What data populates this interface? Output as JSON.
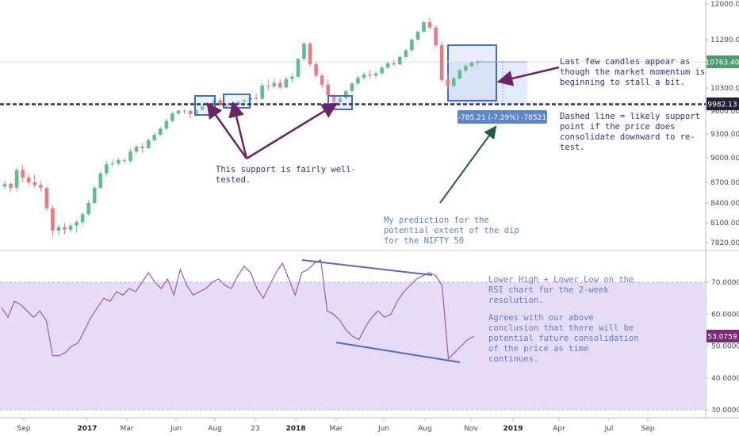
{
  "colors": {
    "up": "#5fbf8a",
    "down": "#ee7a80",
    "support_line": "#2e2a7e",
    "rsi_line": "#9b59b6",
    "rsi_band": "#e6dcf5",
    "box_stroke": "#3d6ec7",
    "box_fill": "#dde7f7",
    "arrow_purple": "#6b2466",
    "arrow_green": "#1f5e3f",
    "note_dark": "#3c2a8a",
    "note_blue": "#5b7fd6",
    "price_badge": "#222233",
    "rsi_badge": "#7b2a73",
    "measure_badge": "#5b86c9"
  },
  "chart_data": [
    {
      "type": "candlestick",
      "title": "",
      "price_axis": {
        "min": 7700,
        "max": 12000,
        "ticks": [
          7820,
          8100,
          8400,
          8700,
          9000,
          9300,
          9600,
          9900,
          10300,
          10700,
          11200,
          12000
        ],
        "tick_labels": [
          "7820.00",
          "8100.00",
          "8400.00",
          "8700.00",
          "9000.00",
          "9300.00",
          "9600.00",
          "9900.00",
          "10300.00",
          "10700.00",
          "11200.00",
          "12000.00"
        ]
      },
      "time_axis": [
        "Sep",
        "2017",
        "Mar",
        "Jun",
        "Aug",
        "23",
        "2018",
        "Mar",
        "Jun",
        "Aug",
        "Nov",
        "2019",
        "Apr",
        "Jul",
        "Sep"
      ],
      "time_axis_bold": [
        "2017",
        "2018",
        "2019"
      ],
      "last_price_label": "10763.40",
      "support_level": 9982.13,
      "support_label": "9982.13",
      "measure_label": "-785.21 (-7.29%) -78521",
      "candles": [
        [
          8640,
          8720,
          8600,
          8680
        ],
        [
          8680,
          8700,
          8560,
          8620
        ],
        [
          8620,
          8880,
          8560,
          8850
        ],
        [
          8850,
          8920,
          8700,
          8760
        ],
        [
          8760,
          8800,
          8660,
          8700
        ],
        [
          8700,
          8800,
          8620,
          8660
        ],
        [
          8660,
          8720,
          8560,
          8620
        ],
        [
          8620,
          8640,
          8280,
          8320
        ],
        [
          8320,
          8360,
          7900,
          7990
        ],
        [
          7990,
          8080,
          7920,
          8040
        ],
        [
          8040,
          8100,
          7930,
          8000
        ],
        [
          8000,
          8090,
          7960,
          8060
        ],
        [
          8060,
          8140,
          7960,
          8110
        ],
        [
          8110,
          8260,
          8060,
          8230
        ],
        [
          8230,
          8440,
          8200,
          8400
        ],
        [
          8400,
          8650,
          8380,
          8620
        ],
        [
          8620,
          8840,
          8600,
          8810
        ],
        [
          8810,
          8960,
          8770,
          8920
        ],
        [
          8920,
          8980,
          8890,
          8930
        ],
        [
          8930,
          9000,
          8910,
          8970
        ],
        [
          8970,
          8995,
          8930,
          8960
        ],
        [
          8960,
          9110,
          8940,
          9080
        ],
        [
          9080,
          9160,
          9050,
          9140
        ],
        [
          9140,
          9180,
          9060,
          9120
        ],
        [
          9120,
          9250,
          9110,
          9220
        ],
        [
          9220,
          9310,
          9210,
          9290
        ],
        [
          9290,
          9400,
          9270,
          9370
        ],
        [
          9370,
          9500,
          9350,
          9470
        ],
        [
          9470,
          9590,
          9450,
          9570
        ],
        [
          9570,
          9650,
          9540,
          9620
        ],
        [
          9620,
          9690,
          9560,
          9600
        ],
        [
          9600,
          9680,
          9500,
          9560
        ],
        [
          9560,
          9690,
          9540,
          9660
        ],
        [
          9660,
          9920,
          9640,
          9890
        ],
        [
          9890,
          9960,
          9800,
          9920
        ],
        [
          9920,
          10100,
          9900,
          10060
        ],
        [
          10060,
          10110,
          9900,
          9920
        ],
        [
          9920,
          9980,
          9820,
          9840
        ],
        [
          9840,
          9960,
          9800,
          9940
        ],
        [
          9940,
          10050,
          9920,
          10030
        ],
        [
          10030,
          10090,
          9980,
          10060
        ],
        [
          10060,
          10150,
          10000,
          10110
        ],
        [
          10110,
          10200,
          10050,
          10090
        ],
        [
          10090,
          10380,
          10070,
          10340
        ],
        [
          10340,
          10450,
          10250,
          10330
        ],
        [
          10330,
          10470,
          10290,
          10390
        ],
        [
          10390,
          10460,
          10280,
          10310
        ],
        [
          10310,
          10500,
          10290,
          10460
        ],
        [
          10460,
          10560,
          10390,
          10500
        ],
        [
          10500,
          10840,
          10480,
          10820
        ],
        [
          10820,
          11150,
          10800,
          11120
        ],
        [
          11120,
          11150,
          10680,
          10720
        ],
        [
          10720,
          10760,
          10480,
          10520
        ],
        [
          10520,
          10560,
          10300,
          10360
        ],
        [
          10360,
          10450,
          10120,
          10160
        ],
        [
          10160,
          10200,
          9990,
          10020
        ],
        [
          10020,
          10120,
          9980,
          10100
        ],
        [
          10100,
          10260,
          10070,
          10240
        ],
        [
          10240,
          10410,
          10200,
          10380
        ],
        [
          10380,
          10520,
          10360,
          10480
        ],
        [
          10480,
          10580,
          10440,
          10540
        ],
        [
          10540,
          10620,
          10470,
          10520
        ],
        [
          10520,
          10590,
          10470,
          10560
        ],
        [
          10560,
          10700,
          10530,
          10660
        ],
        [
          10660,
          10760,
          10640,
          10740
        ],
        [
          10740,
          10790,
          10690,
          10720
        ],
        [
          10720,
          10880,
          10700,
          10860
        ],
        [
          10860,
          11020,
          10840,
          10990
        ],
        [
          10990,
          11220,
          10970,
          11200
        ],
        [
          11200,
          11400,
          11180,
          11380
        ],
        [
          11380,
          11620,
          11360,
          11590
        ],
        [
          11590,
          11700,
          11440,
          11470
        ],
        [
          11470,
          11520,
          11060,
          11090
        ],
        [
          11090,
          11150,
          10400,
          10440
        ],
        [
          10440,
          10540,
          10260,
          10340
        ],
        [
          10340,
          10500,
          10310,
          10470
        ],
        [
          10470,
          10640,
          10440,
          10610
        ],
        [
          10610,
          10720,
          10580,
          10690
        ],
        [
          10690,
          10780,
          10660,
          10750
        ],
        [
          10750,
          10790,
          10700,
          10763.4
        ]
      ]
    },
    {
      "type": "line",
      "title": "",
      "rsi_axis": {
        "min": 28,
        "max": 78,
        "ticks": [
          30,
          40,
          50,
          60,
          70
        ],
        "tick_labels": [
          "30.0000",
          "40.0000",
          "50.0000",
          "60.0000",
          "70.0000"
        ]
      },
      "band": [
        30,
        70
      ],
      "last_value_label": "53.0759",
      "values": [
        62,
        59,
        64,
        63,
        61,
        59,
        61,
        58,
        47,
        47,
        48,
        50,
        51,
        55,
        59,
        62,
        65,
        64,
        67,
        66,
        68,
        67,
        70,
        73,
        70,
        68,
        71,
        66,
        74,
        69,
        66,
        67,
        68,
        70,
        71,
        69,
        68,
        72,
        75,
        73,
        68,
        65,
        69,
        73,
        76,
        71,
        66,
        73,
        74,
        76,
        77,
        61,
        60,
        58,
        55,
        53,
        52,
        56,
        59,
        61,
        59,
        60,
        64,
        67,
        69,
        71,
        72,
        73,
        72,
        69,
        46,
        48,
        50,
        52,
        53.0759
      ]
    }
  ],
  "annotations": {
    "support_note": "This support is fairly well-tested.",
    "support_note_line1": "This support is fairly well-",
    "support_note_line2": "tested.",
    "momentum_note_line1": "Last few candles appear as",
    "momentum_note_line2": "though the market momentum is",
    "momentum_note_line3": "beginning to stall a bit.",
    "dashed_note_line1": "Dashed line = likely support",
    "dashed_note_line2": "point if the price does",
    "dashed_note_line3": "consolidate downward to re-",
    "dashed_note_line4": "test.",
    "prediction_line1": "My prediction for the",
    "prediction_line2": "potential extent of the dip",
    "prediction_line3": "for the NIFTY 50",
    "rsi_note_line1": "Lower High + Lower Low on the",
    "rsi_note_line2": "RSI chart for the 2-week",
    "rsi_note_line3": "resolution.",
    "rsi_note_line5": "Agrees with our above",
    "rsi_note_line6": "conclusion that there will be",
    "rsi_note_line7": "potential future consolidation",
    "rsi_note_line8": "of the price as time",
    "rsi_note_line9": "continues."
  }
}
